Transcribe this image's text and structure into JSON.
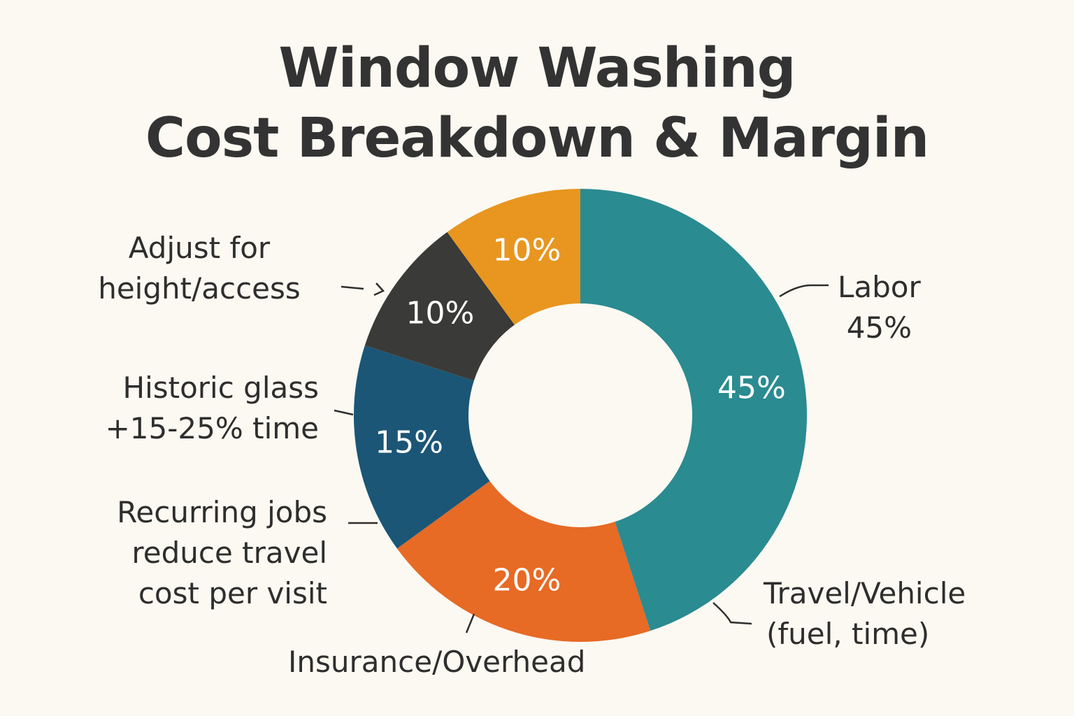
{
  "title": {
    "line1": "Window Washing",
    "line2": "Cost Breakdown & Margin"
  },
  "chart_data": {
    "type": "pie",
    "style": "donut",
    "start": "12 o'clock, clockwise",
    "slices": [
      {
        "value": 45,
        "label": "45%",
        "color": "#2a8b91"
      },
      {
        "value": 20,
        "label": "20%",
        "color": "#e76a25"
      },
      {
        "value": 15,
        "label": "15%",
        "color": "#1b5676"
      },
      {
        "value": 10,
        "label": "10%",
        "color": "#3a3a38"
      },
      {
        "value": 10,
        "label": "10%",
        "color": "#e8961f"
      }
    ]
  },
  "annotations": {
    "labor": {
      "line1": "Labor",
      "line2": "45%"
    },
    "travel": {
      "line1": "Travel/Vehicle",
      "line2": "(fuel, time)"
    },
    "insurance": {
      "line1": "Insurance/Overhead"
    },
    "recurring": {
      "line1": "Recurring jobs",
      "line2": "reduce travel",
      "line3": "cost per visit"
    },
    "historic": {
      "line1": "Historic glass",
      "line2": "+15-25% time"
    },
    "adjust": {
      "line1": "Adjust for",
      "line2": "height/access"
    }
  }
}
